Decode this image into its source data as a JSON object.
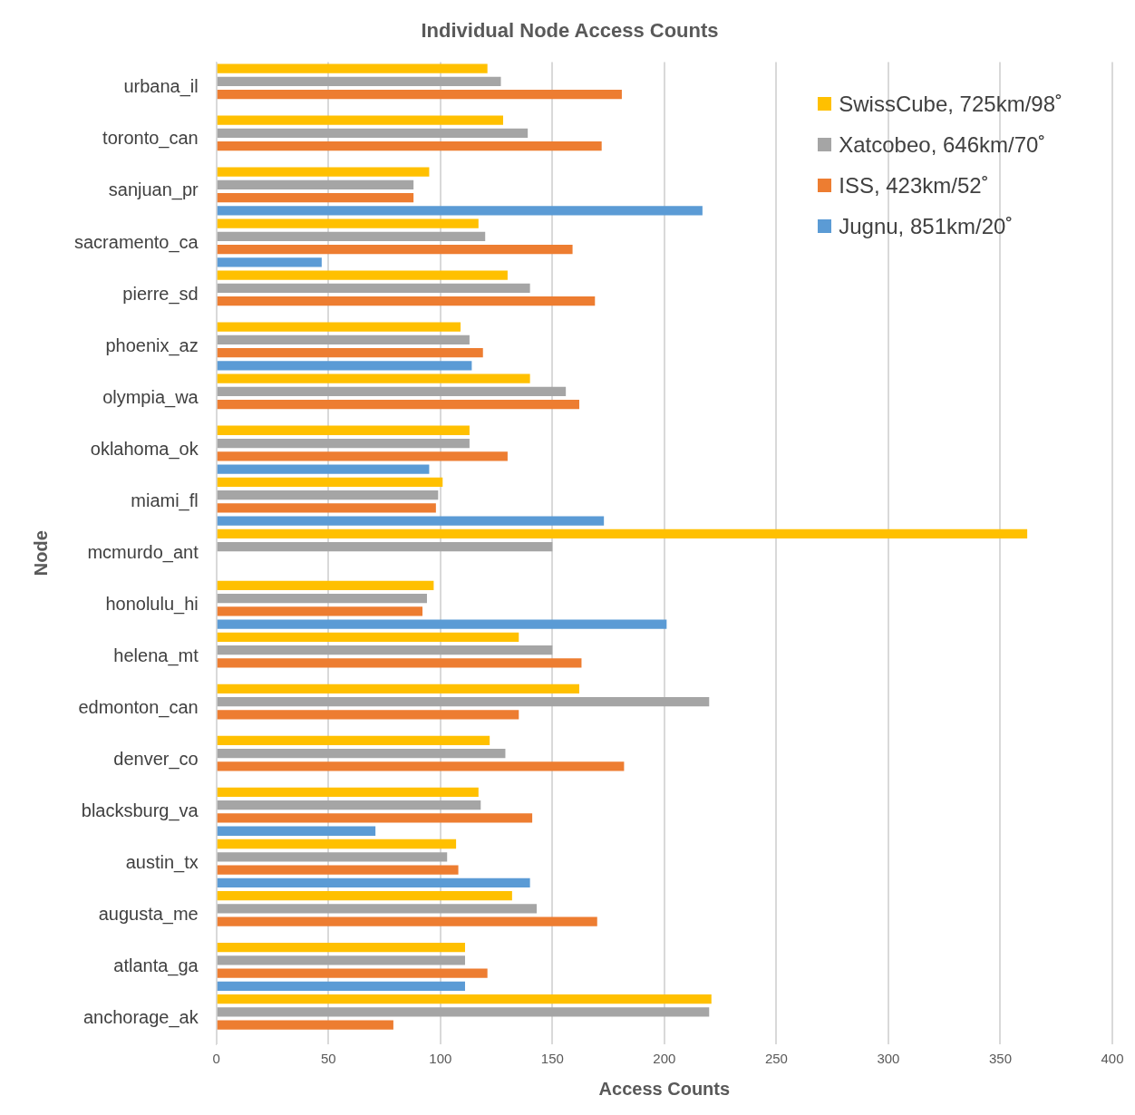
{
  "chart_data": {
    "type": "bar",
    "orientation": "horizontal",
    "title": "Individual Node Access Counts",
    "xlabel": "Access Counts",
    "ylabel": "Node",
    "categories": [
      "urbana_il",
      "toronto_can",
      "sanjuan_pr",
      "sacramento_ca",
      "pierre_sd",
      "phoenix_az",
      "olympia_wa",
      "oklahoma_ok",
      "miami_fl",
      "mcmurdo_ant",
      "honolulu_hi",
      "helena_mt",
      "edmonton_can",
      "denver_co",
      "blacksburg_va",
      "austin_tx",
      "augusta_me",
      "atlanta_ga",
      "anchorage_ak"
    ],
    "series": [
      {
        "name": "SwissCube, 725km/98˚",
        "color": "#ffc000",
        "values": [
          121,
          128,
          95,
          117,
          130,
          109,
          140,
          113,
          101,
          362,
          97,
          135,
          162,
          122,
          117,
          107,
          132,
          111,
          221
        ]
      },
      {
        "name": "Xatcobeo, 646km/70˚",
        "color": "#a5a5a5",
        "values": [
          127,
          139,
          88,
          120,
          140,
          113,
          156,
          113,
          99,
          150,
          94,
          150,
          220,
          129,
          118,
          103,
          143,
          111,
          220
        ]
      },
      {
        "name": "ISS, 423km/52˚",
        "color": "#ed7d31",
        "values": [
          181,
          172,
          88,
          159,
          169,
          119,
          162,
          130,
          98,
          null,
          92,
          163,
          135,
          182,
          141,
          108,
          170,
          121,
          79
        ]
      },
      {
        "name": "Jugnu, 851km/20˚",
        "color": "#5b9bd5",
        "values": [
          null,
          null,
          217,
          47,
          null,
          114,
          null,
          95,
          173,
          null,
          201,
          null,
          null,
          null,
          71,
          140,
          null,
          111,
          null
        ]
      }
    ],
    "xlim": [
      0,
      400
    ],
    "xticks": [
      0,
      50,
      100,
      150,
      200,
      250,
      300,
      350,
      400
    ],
    "grid": "x",
    "legend": "top right"
  }
}
